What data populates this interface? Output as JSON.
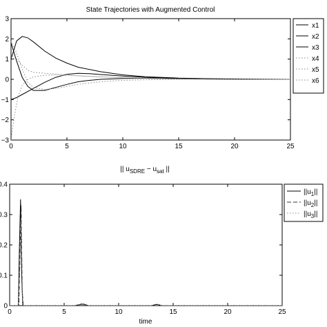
{
  "chart_data": [
    {
      "type": "line",
      "title": "State Trajectories with Augmented Control",
      "xlabel": "",
      "ylabel": "",
      "xlim": [
        0,
        25
      ],
      "ylim": [
        -3,
        3
      ],
      "xticks": [
        0,
        5,
        10,
        15,
        20,
        25
      ],
      "yticks": [
        -3,
        -2,
        -1,
        0,
        1,
        2,
        3
      ],
      "xtick_labels": [
        "0",
        "5",
        "10",
        "15",
        "20",
        "25"
      ],
      "ytick_labels": [
        "−3",
        "−2",
        "−1",
        "0",
        "1",
        "2",
        "3"
      ],
      "grid": false,
      "legend_position": "outside-right-top",
      "series": [
        {
          "name": "x1",
          "style": "solid",
          "color": "#000000",
          "x": [
            0,
            0.5,
            1,
            1.5,
            2,
            3,
            4,
            5,
            6,
            8,
            10,
            12,
            15,
            18,
            20,
            25
          ],
          "y": [
            1.0,
            1.9,
            2.12,
            2.05,
            1.85,
            1.4,
            1.05,
            0.8,
            0.6,
            0.38,
            0.22,
            0.13,
            0.06,
            0.03,
            0.02,
            0.0
          ]
        },
        {
          "name": "x2",
          "style": "solid",
          "color": "#000000",
          "x": [
            0,
            0.5,
            1,
            1.5,
            2,
            3,
            4,
            5,
            6,
            7,
            8,
            10,
            12,
            15,
            20,
            25
          ],
          "y": [
            1.8,
            0.9,
            0.1,
            -0.35,
            -0.55,
            -0.55,
            -0.4,
            -0.25,
            -0.12,
            -0.05,
            0.0,
            0.04,
            0.05,
            0.03,
            0.0,
            0.0
          ]
        },
        {
          "name": "x3",
          "style": "solid",
          "color": "#000000",
          "x": [
            0,
            0.5,
            1,
            2,
            3,
            4,
            5,
            6,
            7,
            8,
            10,
            12,
            15,
            20,
            25
          ],
          "y": [
            -1.0,
            -0.9,
            -0.75,
            -0.45,
            -0.15,
            0.1,
            0.25,
            0.3,
            0.28,
            0.24,
            0.16,
            0.1,
            0.05,
            0.01,
            0.0
          ]
        },
        {
          "name": "x4",
          "style": "dotted",
          "color": "#888888",
          "x": [
            0,
            0.3,
            0.6,
            1,
            1.5,
            2,
            3,
            4,
            5,
            6,
            8,
            10,
            12,
            15,
            20,
            25
          ],
          "y": [
            -3.0,
            -1.8,
            -0.9,
            -0.3,
            0.0,
            0.12,
            0.2,
            0.22,
            0.2,
            0.17,
            0.12,
            0.08,
            0.05,
            0.02,
            0.0,
            0.0
          ]
        },
        {
          "name": "x5",
          "style": "dotted",
          "color": "#888888",
          "x": [
            0,
            0.5,
            1,
            1.5,
            2,
            3,
            4,
            5,
            6,
            8,
            10,
            12,
            15,
            20,
            25
          ],
          "y": [
            1.1,
            1.0,
            0.7,
            0.45,
            0.35,
            0.3,
            0.26,
            0.22,
            0.18,
            0.12,
            0.08,
            0.05,
            0.02,
            0.0,
            0.0
          ]
        },
        {
          "name": "x6",
          "style": "dotted",
          "color": "#888888",
          "x": [
            0,
            0.5,
            1,
            1.5,
            2,
            3,
            4,
            5,
            6,
            8,
            10,
            12,
            15,
            20,
            25
          ],
          "y": [
            1.9,
            1.3,
            0.5,
            -0.15,
            -0.4,
            -0.5,
            -0.45,
            -0.35,
            -0.25,
            -0.12,
            -0.05,
            -0.02,
            0.0,
            0.0,
            0.0
          ]
        }
      ]
    },
    {
      "type": "line",
      "title_main": "|| u",
      "title_sub1": "SDRE",
      "title_mid": " − u",
      "title_sub2": "sat",
      "title_end": " ||",
      "xlabel": "time",
      "ylabel": "",
      "xlim": [
        0,
        25
      ],
      "ylim": [
        0,
        0.4
      ],
      "xticks": [
        0,
        5,
        10,
        15,
        20,
        25
      ],
      "yticks": [
        0,
        0.1,
        0.2,
        0.3,
        0.4
      ],
      "xtick_labels": [
        "0",
        "5",
        "10",
        "15",
        "20",
        "25"
      ],
      "ytick_labels": [
        "0",
        "0.1",
        "0.2",
        "0.3",
        "0.4"
      ],
      "grid": false,
      "legend_position": "top-right",
      "series": [
        {
          "name_main": "||u",
          "name_sub": "1",
          "name_end": "||",
          "style": "solid",
          "color": "#000000",
          "x": [
            0,
            0.8,
            0.9,
            1.0,
            1.1,
            1.2,
            6,
            6.5,
            6.8,
            7.2,
            13,
            13.5,
            14,
            25
          ],
          "y": [
            0,
            0,
            0.2,
            0.35,
            0.1,
            0,
            0,
            0.004,
            0.005,
            0,
            0,
            0.004,
            0,
            0
          ]
        },
        {
          "name_main": "||u",
          "name_sub": "2",
          "name_end": "||",
          "style": "dashed",
          "color": "#333333",
          "x": [
            0,
            0.85,
            0.95,
            1.05,
            1.15,
            1.25,
            6,
            6.6,
            7,
            25
          ],
          "y": [
            0,
            0,
            0.18,
            0.33,
            0.05,
            0,
            0,
            0.006,
            0,
            0
          ]
        },
        {
          "name_main": "||u",
          "name_sub": "3",
          "name_end": "||",
          "style": "dotted",
          "color": "#888888",
          "x": [
            0,
            0.8,
            0.95,
            1.05,
            1.2,
            6.2,
            6.6,
            7,
            13.2,
            13.6,
            14,
            25
          ],
          "y": [
            0,
            0,
            0.15,
            0.28,
            0,
            0,
            0.007,
            0,
            0,
            0.003,
            0,
            0
          ]
        }
      ]
    }
  ]
}
